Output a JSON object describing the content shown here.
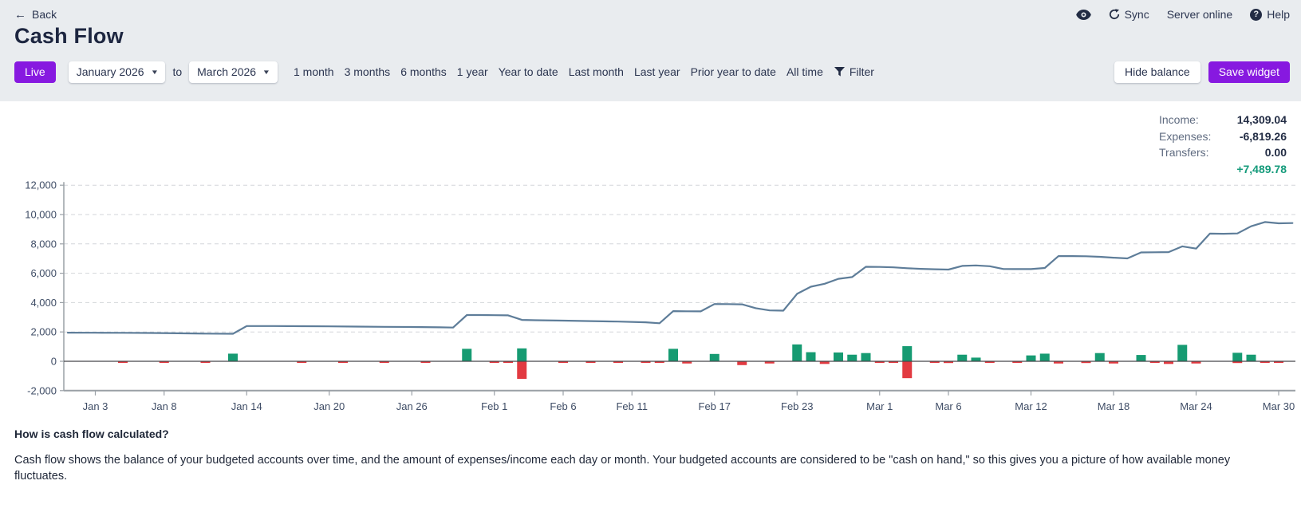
{
  "header": {
    "back_label": "Back",
    "title": "Cash Flow",
    "sync_label": "Sync",
    "server_status": "Server online",
    "help_label": "Help"
  },
  "toolbar": {
    "live_label": "Live",
    "from_month": "January 2026",
    "to_label": "to",
    "to_month": "March 2026",
    "ranges": [
      "1 month",
      "3 months",
      "6 months",
      "1 year",
      "Year to date",
      "Last month",
      "Last year",
      "Prior year to date",
      "All time"
    ],
    "filter_label": "Filter",
    "hide_balance_label": "Hide balance",
    "save_widget_label": "Save widget"
  },
  "summary": {
    "rows": [
      {
        "label": "Income:",
        "value": "14,309.04"
      },
      {
        "label": "Expenses:",
        "value": "-6,819.26"
      },
      {
        "label": "Transfers:",
        "value": "0.00"
      }
    ],
    "net": "+7,489.78"
  },
  "chart_data": {
    "type": "line",
    "title": "Cash Flow balance over time with daily income and expense bars",
    "x_unit": "day index from Jan 1 2026",
    "x_domain": [
      "Jan 1",
      "Mar 31"
    ],
    "ylim": [
      -2000,
      12000
    ],
    "grid": "dashed-horizontal",
    "legend": "none",
    "y_ticks": [
      {
        "value": -2000,
        "label": "-2,000"
      },
      {
        "value": 0,
        "label": "0"
      },
      {
        "value": 2000,
        "label": "2,000"
      },
      {
        "value": 4000,
        "label": "4,000"
      },
      {
        "value": 6000,
        "label": "6,000"
      },
      {
        "value": 8000,
        "label": "8,000"
      },
      {
        "value": 10000,
        "label": "10,000"
      },
      {
        "value": 12000,
        "label": "12,000"
      }
    ],
    "x_ticks": [
      {
        "day": 2,
        "label": "Jan 3"
      },
      {
        "day": 7,
        "label": "Jan 8"
      },
      {
        "day": 13,
        "label": "Jan 14"
      },
      {
        "day": 19,
        "label": "Jan 20"
      },
      {
        "day": 25,
        "label": "Jan 26"
      },
      {
        "day": 31,
        "label": "Feb 1"
      },
      {
        "day": 36,
        "label": "Feb 6"
      },
      {
        "day": 41,
        "label": "Feb 11"
      },
      {
        "day": 47,
        "label": "Feb 17"
      },
      {
        "day": 53,
        "label": "Feb 23"
      },
      {
        "day": 59,
        "label": "Mar 1"
      },
      {
        "day": 64,
        "label": "Mar 6"
      },
      {
        "day": 70,
        "label": "Mar 12"
      },
      {
        "day": 76,
        "label": "Mar 18"
      },
      {
        "day": 82,
        "label": "Mar 24"
      },
      {
        "day": 88,
        "label": "Mar 30"
      }
    ],
    "series": [
      {
        "name": "Balance",
        "type": "line",
        "color": "#5e7d99",
        "points": [
          [
            0,
            1950
          ],
          [
            2,
            1945
          ],
          [
            4,
            1940
          ],
          [
            6,
            1930
          ],
          [
            8,
            1905
          ],
          [
            10,
            1885
          ],
          [
            12,
            1875
          ],
          [
            13,
            2400
          ],
          [
            15,
            2400
          ],
          [
            17,
            2390
          ],
          [
            19,
            2380
          ],
          [
            21,
            2365
          ],
          [
            23,
            2350
          ],
          [
            25,
            2335
          ],
          [
            27,
            2315
          ],
          [
            28,
            2300
          ],
          [
            29,
            3150
          ],
          [
            30,
            3150
          ],
          [
            31,
            3140
          ],
          [
            32,
            3130
          ],
          [
            33,
            2820
          ],
          [
            34,
            2800
          ],
          [
            36,
            2770
          ],
          [
            38,
            2740
          ],
          [
            40,
            2705
          ],
          [
            42,
            2660
          ],
          [
            43,
            2590
          ],
          [
            44,
            3420
          ],
          [
            45,
            3410
          ],
          [
            46,
            3400
          ],
          [
            47,
            3900
          ],
          [
            48,
            3895
          ],
          [
            49,
            3880
          ],
          [
            50,
            3620
          ],
          [
            51,
            3470
          ],
          [
            52,
            3450
          ],
          [
            53,
            4600
          ],
          [
            54,
            5080
          ],
          [
            55,
            5280
          ],
          [
            56,
            5620
          ],
          [
            57,
            5740
          ],
          [
            58,
            6440
          ],
          [
            59,
            6430
          ],
          [
            60,
            6400
          ],
          [
            61,
            6340
          ],
          [
            62,
            6300
          ],
          [
            63,
            6270
          ],
          [
            64,
            6250
          ],
          [
            65,
            6500
          ],
          [
            66,
            6530
          ],
          [
            67,
            6480
          ],
          [
            68,
            6290
          ],
          [
            69,
            6280
          ],
          [
            70,
            6280
          ],
          [
            71,
            6360
          ],
          [
            72,
            7170
          ],
          [
            73,
            7170
          ],
          [
            74,
            7160
          ],
          [
            75,
            7120
          ],
          [
            76,
            7060
          ],
          [
            77,
            7010
          ],
          [
            78,
            7420
          ],
          [
            79,
            7430
          ],
          [
            80,
            7440
          ],
          [
            81,
            7830
          ],
          [
            82,
            7680
          ],
          [
            83,
            8700
          ],
          [
            84,
            8690
          ],
          [
            85,
            8710
          ],
          [
            86,
            9200
          ],
          [
            87,
            9490
          ],
          [
            88,
            9400
          ],
          [
            89,
            9420
          ]
        ]
      },
      {
        "name": "Income",
        "type": "bar",
        "color": "#169b72",
        "points": [
          [
            12,
            520
          ],
          [
            29,
            850
          ],
          [
            33,
            880
          ],
          [
            44,
            850
          ],
          [
            47,
            500
          ],
          [
            53,
            1150
          ],
          [
            54,
            620
          ],
          [
            56,
            600
          ],
          [
            57,
            450
          ],
          [
            58,
            560
          ],
          [
            61,
            1030
          ],
          [
            65,
            450
          ],
          [
            66,
            250
          ],
          [
            70,
            400
          ],
          [
            71,
            520
          ],
          [
            75,
            560
          ],
          [
            78,
            430
          ],
          [
            81,
            1120
          ],
          [
            85,
            580
          ],
          [
            86,
            450
          ]
        ]
      },
      {
        "name": "Expenses",
        "type": "bar",
        "color": "#e23a41",
        "points": [
          [
            4,
            -30
          ],
          [
            7,
            -40
          ],
          [
            10,
            -30
          ],
          [
            17,
            -25
          ],
          [
            20,
            -40
          ],
          [
            23,
            -30
          ],
          [
            26,
            -35
          ],
          [
            31,
            -60
          ],
          [
            32,
            -50
          ],
          [
            33,
            -1200
          ],
          [
            36,
            -80
          ],
          [
            38,
            -60
          ],
          [
            40,
            -70
          ],
          [
            42,
            -90
          ],
          [
            43,
            -100
          ],
          [
            45,
            -150
          ],
          [
            49,
            -260
          ],
          [
            51,
            -150
          ],
          [
            55,
            -180
          ],
          [
            59,
            -80
          ],
          [
            60,
            -90
          ],
          [
            61,
            -1150
          ],
          [
            63,
            -80
          ],
          [
            64,
            -120
          ],
          [
            67,
            -90
          ],
          [
            69,
            -100
          ],
          [
            72,
            -150
          ],
          [
            74,
            -120
          ],
          [
            76,
            -150
          ],
          [
            79,
            -90
          ],
          [
            80,
            -180
          ],
          [
            82,
            -150
          ],
          [
            85,
            -120
          ],
          [
            87,
            -100
          ],
          [
            88,
            -60
          ]
        ]
      }
    ]
  },
  "footer": {
    "heading": "How is cash flow calculated?",
    "body": "Cash flow shows the balance of your budgeted accounts over time, and the amount of expenses/income each day or month. Your budgeted accounts are considered to be \"cash on hand,\" so this gives you a picture of how available money fluctuates."
  },
  "colors": {
    "accent_purple": "#8719e0",
    "header_bg": "#e9ecef",
    "balance_line": "#5e7d99",
    "income_green": "#169b72",
    "expense_red": "#e23a41",
    "net_teal": "#159b7b"
  }
}
